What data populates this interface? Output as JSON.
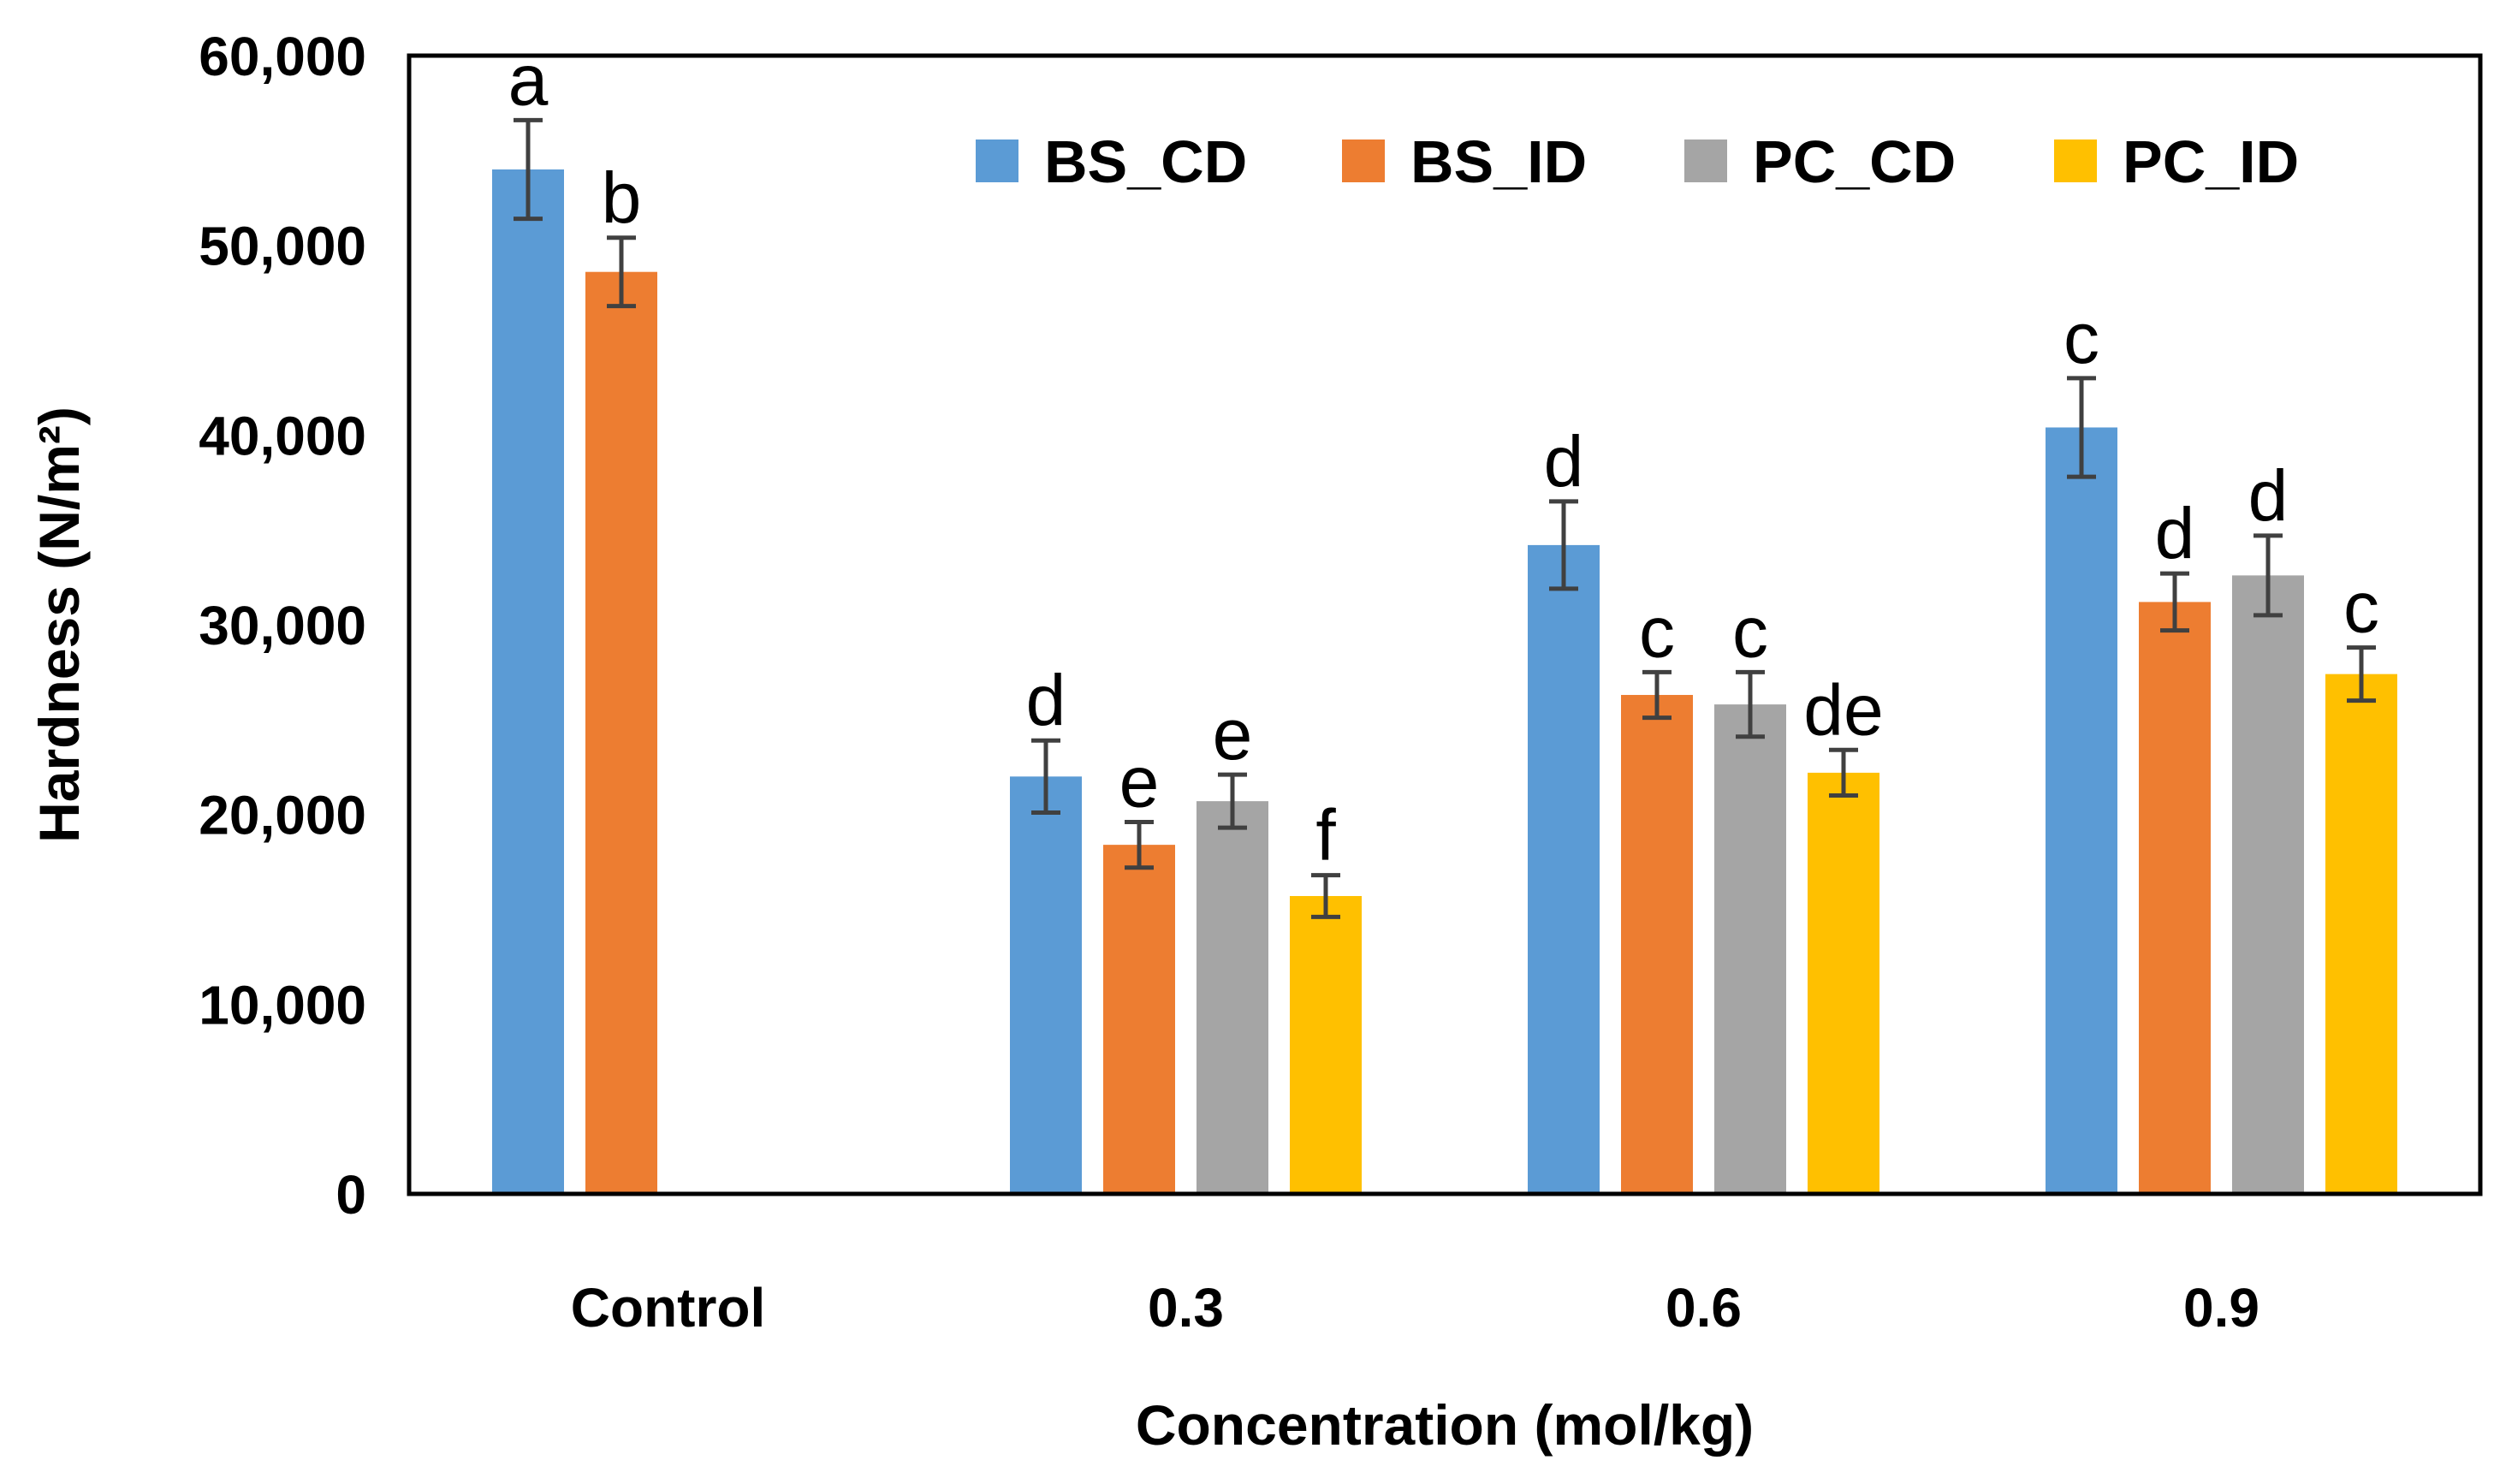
{
  "chart_data": {
    "type": "bar",
    "title": "",
    "xlabel": "Concentration (mol/kg)",
    "ylabel": "Hardness (N/m²)",
    "ylim": [
      0,
      60000
    ],
    "yticks": [
      "0",
      "10,000",
      "20,000",
      "30,000",
      "40,000",
      "50,000",
      "60,000"
    ],
    "ytick_values": [
      0,
      10000,
      20000,
      30000,
      40000,
      50000,
      60000
    ],
    "categories": [
      "Control",
      "0.3",
      "0.6",
      "0.9"
    ],
    "legend_position": "top-right",
    "grid": false,
    "series": [
      {
        "name": "BS_CD",
        "color": "#5B9BD5",
        "values": [
          54000,
          22000,
          34200,
          40400
        ],
        "errors": [
          2600,
          1900,
          2300,
          2600
        ],
        "letters": [
          "a",
          "d",
          "d",
          "c"
        ]
      },
      {
        "name": "BS_ID",
        "color": "#ED7D31",
        "values": [
          48600,
          18400,
          26300,
          31200
        ],
        "errors": [
          1800,
          1200,
          1200,
          1500
        ],
        "letters": [
          "b",
          "e",
          "c",
          "d"
        ]
      },
      {
        "name": "PC_CD",
        "color": "#A5A5A5",
        "values": [
          null,
          20700,
          25800,
          32600
        ],
        "errors": [
          null,
          1400,
          1700,
          2100
        ],
        "letters": [
          "",
          "e",
          "c",
          "d"
        ]
      },
      {
        "name": "PC_ID",
        "color": "#FFC000",
        "values": [
          null,
          15700,
          22200,
          27400
        ],
        "errors": [
          null,
          1100,
          1200,
          1400
        ],
        "letters": [
          "",
          "f",
          "de",
          "c"
        ]
      }
    ]
  }
}
